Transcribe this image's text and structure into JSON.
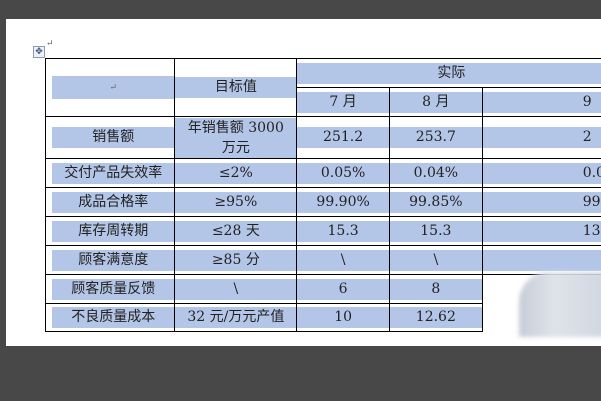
{
  "header": {
    "target": "目标值",
    "actual": "实际",
    "months": [
      "7 月",
      "8 月",
      "9"
    ]
  },
  "rows": [
    {
      "label": "销售额",
      "target": "年销售额 3000 万元",
      "m7": "251.2",
      "m8": "253.7",
      "m9": "2"
    },
    {
      "label": "交付产品失效率",
      "target": "≤2%",
      "m7": "0.05%",
      "m8": "0.04%",
      "m9": "0.0"
    },
    {
      "label": "成品合格率",
      "target": "≥95%",
      "m7": "99.90%",
      "m8": "99.85%",
      "m9": "99."
    },
    {
      "label": "库存周转期",
      "target": "≤28 天",
      "m7": "15.3",
      "m8": "15.3",
      "m9": "13"
    },
    {
      "label": "顾客满意度",
      "target": "≥85 分",
      "m7": "\\",
      "m8": "\\",
      "m9": ""
    },
    {
      "label": "顾客质量反馈",
      "target": "\\",
      "m7": "6",
      "m8": "8",
      "m9": ""
    },
    {
      "label": "不良质量成本",
      "target": "32 元/万元产值",
      "m7": "10",
      "m8": "12.62",
      "m9": ""
    }
  ],
  "colors": {
    "cell_shading": "#b4c6e7",
    "background": "#484848"
  }
}
